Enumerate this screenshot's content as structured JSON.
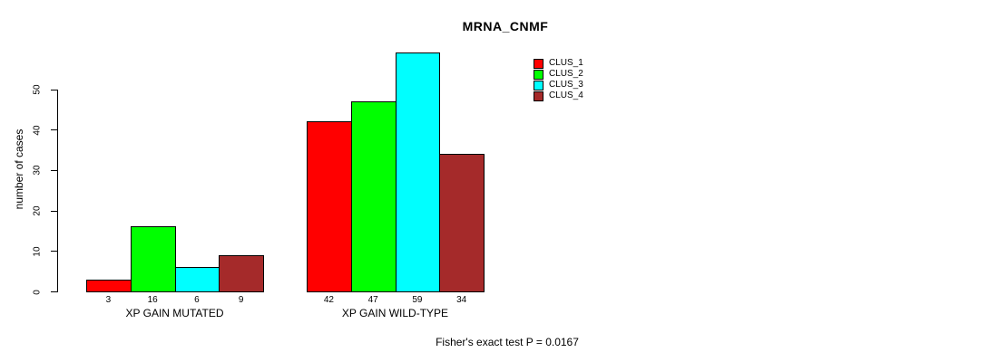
{
  "title": "MRNA_CNMF",
  "y_axis": {
    "label": "number of cases"
  },
  "footnote": "Fisher's exact test P = 0.0167",
  "chart_data": {
    "type": "bar",
    "title": "MRNA_CNMF",
    "xlabel": "",
    "ylabel": "number of cases",
    "categories": [
      "XP GAIN MUTATED",
      "XP GAIN WILD-TYPE"
    ],
    "series": [
      {
        "name": "CLUS_1",
        "color": "#ff0000",
        "values": [
          3,
          42
        ]
      },
      {
        "name": "CLUS_2",
        "color": "#00ff00",
        "values": [
          16,
          47
        ]
      },
      {
        "name": "CLUS_3",
        "color": "#00ffff",
        "values": [
          6,
          59
        ]
      },
      {
        "name": "CLUS_4",
        "color": "#a52a2a",
        "values": [
          9,
          34
        ]
      }
    ],
    "yticks": [
      0,
      10,
      20,
      30,
      40,
      50
    ],
    "ylim": [
      0,
      59
    ],
    "grid": false,
    "bar_value_labels_shown": true,
    "legend_position": "top-right",
    "annotation": "Fisher's exact test P = 0.0167"
  }
}
